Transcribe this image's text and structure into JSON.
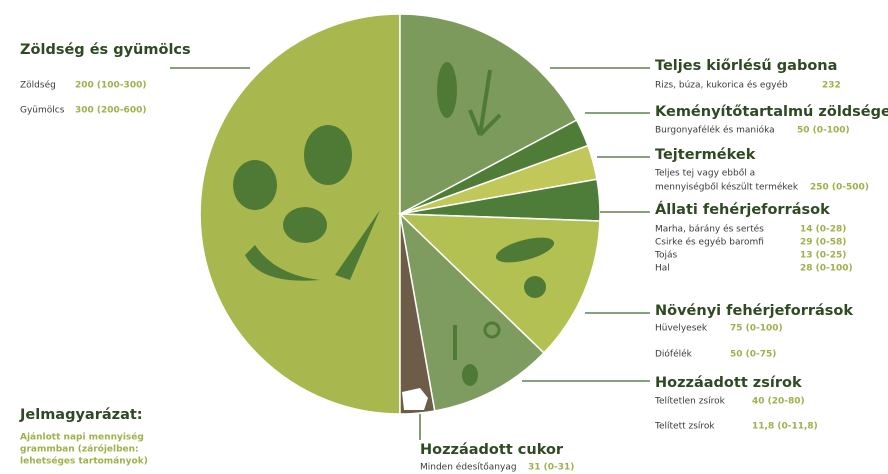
{
  "groups": [
    {
      "title": "Zöldség és gyümölcs",
      "items": [
        {
          "name": [
            "Zöldség"
          ],
          "amount": "200 (100-300)"
        },
        {
          "name": [
            "Gyümölcs"
          ],
          "amount": "300 (200-600)"
        }
      ]
    },
    {
      "title": "Teljes kiőrlésű gabona",
      "items": [
        {
          "name": [
            "Rizs, búza, kukorica és egyéb"
          ],
          "amount": "232"
        }
      ]
    },
    {
      "title": "Keményítőtartalmú zöldségek",
      "items": [
        {
          "name": [
            "Burgonyafélék és manióka"
          ],
          "amount": "50 (0-100)"
        }
      ]
    },
    {
      "title": "Tejtermékek",
      "items": [
        {
          "name": [
            "Teljes tej vagy ebből a",
            "mennyiségből készült termékek"
          ],
          "amount": "250 (0-500)"
        }
      ]
    },
    {
      "title": "Állati fehérjeforrások",
      "items": [
        {
          "name": [
            "Marha, bárány és sertés"
          ],
          "amount": "14 (0-28)"
        },
        {
          "name": [
            "Csirke és egyéb baromfi"
          ],
          "amount": "29 (0-58)"
        },
        {
          "name": [
            "Tojás"
          ],
          "amount": "13 (0-25)"
        },
        {
          "name": [
            "Hal"
          ],
          "amount": "28 (0-100)"
        }
      ]
    },
    {
      "title": "Növényi fehérjeforrások",
      "items": [
        {
          "name": [
            "Hüvelyesek"
          ],
          "amount": "75 (0-100)"
        },
        {
          "name": [
            "Diófélék"
          ],
          "amount": "50 (0-75)"
        }
      ]
    },
    {
      "title": "Hozzáadott zsírok",
      "items": [
        {
          "name": [
            "Telítetlen zsírok"
          ],
          "amount": "40 (20-80)"
        },
        {
          "name": [
            "Telített zsírok"
          ],
          "amount": "11,8 (0-11,8)"
        }
      ]
    },
    {
      "title": "Hozzáadott cukor",
      "items": [
        {
          "name": [
            "Minden édesítőanyag"
          ],
          "amount": "31 (0-31)"
        }
      ]
    }
  ],
  "legend": {
    "title": "Jelmagyarázat:",
    "lines": [
      "Ajánlott napi mennyiség",
      "grammban (zárójelben:",
      "lehetséges tartományok)"
    ]
  }
}
